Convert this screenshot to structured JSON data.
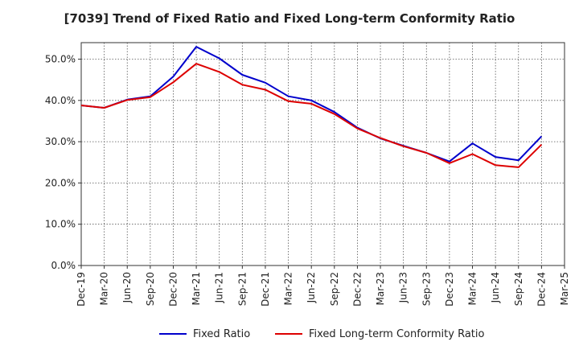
{
  "chart_data": {
    "type": "line",
    "title": "[7039]  Trend of Fixed Ratio and Fixed Long-term Conformity Ratio",
    "categories": [
      "Dec-19",
      "Mar-20",
      "Jun-20",
      "Sep-20",
      "Dec-20",
      "Mar-21",
      "Jun-21",
      "Sep-21",
      "Dec-21",
      "Mar-22",
      "Jun-22",
      "Sep-22",
      "Dec-22",
      "Mar-23",
      "Jun-23",
      "Sep-23",
      "Dec-23",
      "Mar-24",
      "Jun-24",
      "Sep-24",
      "Dec-24",
      "Mar-25"
    ],
    "y_ticks": [
      "0.0%",
      "10.0%",
      "20.0%",
      "30.0%",
      "40.0%",
      "50.0%"
    ],
    "ylim": [
      0,
      54
    ],
    "grid": true,
    "legend_position": "bottom",
    "series": [
      {
        "name": "Fixed Ratio",
        "color": "#0000cc",
        "values": [
          38.8,
          38.2,
          40.2,
          41.0,
          45.8,
          53.0,
          50.2,
          46.2,
          44.3,
          41.0,
          40.0,
          37.2,
          33.4,
          30.8,
          29.0,
          27.3,
          25.2,
          29.6,
          26.3,
          25.5,
          31.3,
          null
        ]
      },
      {
        "name": "Fixed Long-term Conformity Ratio",
        "color": "#dd0000",
        "values": [
          38.8,
          38.2,
          40.1,
          40.8,
          44.4,
          48.9,
          46.9,
          43.8,
          42.6,
          39.8,
          39.2,
          36.7,
          33.2,
          30.9,
          28.9,
          27.3,
          24.8,
          27.0,
          24.3,
          23.8,
          29.3,
          null
        ]
      }
    ]
  }
}
